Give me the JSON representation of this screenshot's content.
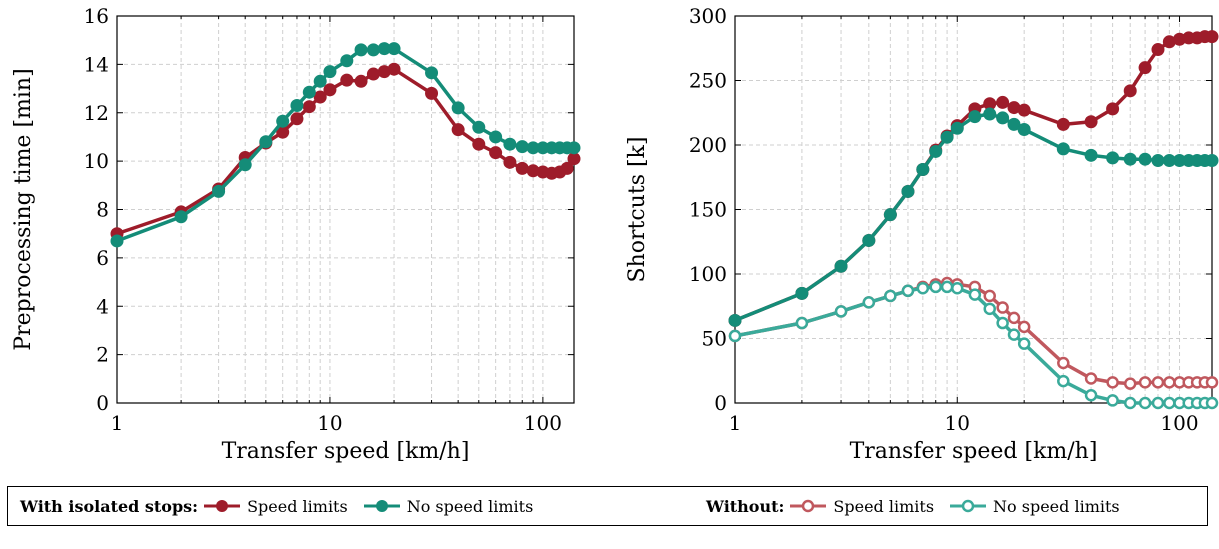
{
  "colors": {
    "speed_iso": "#9e1c2a",
    "nospeed_iso": "#148c78",
    "speed_without": "#c0585e",
    "nospeed_without": "#3aaa9a"
  },
  "chart_data": [
    {
      "type": "line",
      "xlabel": "Transfer speed [km/h]",
      "ylabel": "Preprocessing time [min]",
      "xscale": "log",
      "xlim": [
        1,
        140
      ],
      "ylim": [
        0,
        16
      ],
      "xticks": [
        "1",
        "10",
        "100"
      ],
      "yticks": [
        "0",
        "2",
        "4",
        "6",
        "8",
        "10",
        "12",
        "14",
        "16"
      ],
      "grid": true,
      "series": [
        {
          "name": "With isolated stops: Speed limits",
          "color": "#9e1c2a",
          "filled": true,
          "points": [
            [
              1,
              7.0
            ],
            [
              2,
              7.9
            ],
            [
              3,
              8.85
            ],
            [
              4,
              10.15
            ],
            [
              5,
              10.75
            ],
            [
              6,
              11.2
            ],
            [
              7,
              11.75
            ],
            [
              8,
              12.25
            ],
            [
              9,
              12.65
            ],
            [
              10,
              12.95
            ],
            [
              12,
              13.35
            ],
            [
              14,
              13.3
            ],
            [
              16,
              13.6
            ],
            [
              18,
              13.7
            ],
            [
              20,
              13.8
            ],
            [
              30,
              12.8
            ],
            [
              40,
              11.3
            ],
            [
              50,
              10.7
            ],
            [
              60,
              10.35
            ],
            [
              70,
              9.95
            ],
            [
              80,
              9.7
            ],
            [
              90,
              9.6
            ],
            [
              100,
              9.55
            ],
            [
              110,
              9.5
            ],
            [
              120,
              9.55
            ],
            [
              130,
              9.7
            ],
            [
              140,
              10.1
            ]
          ]
        },
        {
          "name": "With isolated stops: No speed limits",
          "color": "#148c78",
          "filled": true,
          "points": [
            [
              1,
              6.7
            ],
            [
              2,
              7.7
            ],
            [
              3,
              8.75
            ],
            [
              4,
              9.85
            ],
            [
              5,
              10.8
            ],
            [
              6,
              11.65
            ],
            [
              7,
              12.3
            ],
            [
              8,
              12.85
            ],
            [
              9,
              13.3
            ],
            [
              10,
              13.7
            ],
            [
              12,
              14.15
            ],
            [
              14,
              14.6
            ],
            [
              16,
              14.6
            ],
            [
              18,
              14.65
            ],
            [
              20,
              14.65
            ],
            [
              30,
              13.65
            ],
            [
              40,
              12.2
            ],
            [
              50,
              11.4
            ],
            [
              60,
              11.0
            ],
            [
              70,
              10.7
            ],
            [
              80,
              10.6
            ],
            [
              90,
              10.55
            ],
            [
              100,
              10.55
            ],
            [
              110,
              10.55
            ],
            [
              120,
              10.55
            ],
            [
              130,
              10.55
            ],
            [
              140,
              10.55
            ]
          ]
        }
      ]
    },
    {
      "type": "line",
      "xlabel": "Transfer speed [km/h]",
      "ylabel": "Shortcuts [k]",
      "xscale": "log",
      "xlim": [
        1,
        140
      ],
      "ylim": [
        0,
        300
      ],
      "xticks": [
        "1",
        "10",
        "100"
      ],
      "yticks": [
        "0",
        "50",
        "100",
        "150",
        "200",
        "250",
        "300"
      ],
      "grid": true,
      "series": [
        {
          "name": "With isolated stops: Speed limits",
          "color": "#9e1c2a",
          "filled": true,
          "points": [
            [
              1,
              64
            ],
            [
              2,
              85
            ],
            [
              3,
              106
            ],
            [
              4,
              126
            ],
            [
              5,
              146
            ],
            [
              6,
              164
            ],
            [
              7,
              181
            ],
            [
              8,
              196
            ],
            [
              9,
              207
            ],
            [
              10,
              215
            ],
            [
              12,
              228
            ],
            [
              14,
              232
            ],
            [
              16,
              233
            ],
            [
              18,
              229
            ],
            [
              20,
              227
            ],
            [
              30,
              216
            ],
            [
              40,
              218
            ],
            [
              50,
              228
            ],
            [
              60,
              242
            ],
            [
              70,
              260
            ],
            [
              80,
              274
            ],
            [
              90,
              280
            ],
            [
              100,
              282
            ],
            [
              110,
              283
            ],
            [
              120,
              283
            ],
            [
              130,
              284
            ],
            [
              140,
              284
            ]
          ]
        },
        {
          "name": "With isolated stops: No speed limits",
          "color": "#148c78",
          "filled": true,
          "points": [
            [
              1,
              64
            ],
            [
              2,
              85
            ],
            [
              3,
              106
            ],
            [
              4,
              126
            ],
            [
              5,
              146
            ],
            [
              6,
              164
            ],
            [
              7,
              181
            ],
            [
              8,
              195
            ],
            [
              9,
              206
            ],
            [
              10,
              213
            ],
            [
              12,
              222
            ],
            [
              14,
              224
            ],
            [
              16,
              221
            ],
            [
              18,
              216
            ],
            [
              20,
              212
            ],
            [
              30,
              197
            ],
            [
              40,
              192
            ],
            [
              50,
              190
            ],
            [
              60,
              189
            ],
            [
              70,
              189
            ],
            [
              80,
              188
            ],
            [
              90,
              188
            ],
            [
              100,
              188
            ],
            [
              110,
              188
            ],
            [
              120,
              188
            ],
            [
              130,
              188
            ],
            [
              140,
              188
            ]
          ]
        },
        {
          "name": "Without: Speed limits",
          "color": "#c0585e",
          "filled": false,
          "points": [
            [
              1,
              52
            ],
            [
              2,
              62
            ],
            [
              3,
              71
            ],
            [
              4,
              78
            ],
            [
              5,
              83
            ],
            [
              6,
              87
            ],
            [
              7,
              90
            ],
            [
              8,
              92
            ],
            [
              9,
              93
            ],
            [
              10,
              92
            ],
            [
              12,
              90
            ],
            [
              14,
              83
            ],
            [
              16,
              74
            ],
            [
              18,
              66
            ],
            [
              20,
              59
            ],
            [
              30,
              31
            ],
            [
              40,
              19
            ],
            [
              50,
              16
            ],
            [
              60,
              15
            ],
            [
              70,
              16
            ],
            [
              80,
              16
            ],
            [
              90,
              16
            ],
            [
              100,
              16
            ],
            [
              110,
              16
            ],
            [
              120,
              16
            ],
            [
              130,
              16
            ],
            [
              140,
              16
            ]
          ]
        },
        {
          "name": "Without: No speed limits",
          "color": "#3aaa9a",
          "filled": false,
          "points": [
            [
              1,
              52
            ],
            [
              2,
              62
            ],
            [
              3,
              71
            ],
            [
              4,
              78
            ],
            [
              5,
              83
            ],
            [
              6,
              87
            ],
            [
              7,
              89
            ],
            [
              8,
              90
            ],
            [
              9,
              90
            ],
            [
              10,
              89
            ],
            [
              12,
              84
            ],
            [
              14,
              73
            ],
            [
              16,
              62
            ],
            [
              18,
              53
            ],
            [
              20,
              46
            ],
            [
              30,
              17
            ],
            [
              40,
              6
            ],
            [
              50,
              2
            ],
            [
              60,
              0
            ],
            [
              70,
              0
            ],
            [
              80,
              0
            ],
            [
              90,
              0
            ],
            [
              100,
              0
            ],
            [
              110,
              0
            ],
            [
              120,
              0
            ],
            [
              130,
              0
            ],
            [
              140,
              0
            ]
          ]
        }
      ]
    }
  ],
  "legend": {
    "group1_title": "With isolated stops",
    "group1_speed": "Speed limits",
    "group1_nospeed": "No speed limits",
    "group2_title": "Without",
    "group2_speed": "Speed limits",
    "group2_nospeed": "No speed limits"
  }
}
